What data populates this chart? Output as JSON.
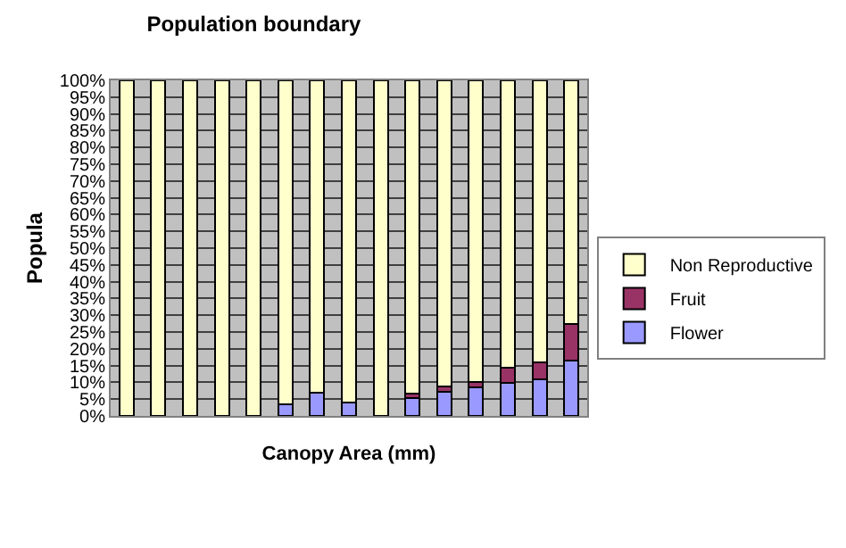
{
  "chart_data": {
    "type": "bar",
    "title": "Population boundary",
    "xlabel": "Canopy Area (mm)",
    "ylabel": "Popula",
    "categories": [
      null,
      null,
      null,
      null,
      null,
      null,
      null,
      null,
      null,
      null,
      null,
      null,
      null,
      null,
      null
    ],
    "stacked": true,
    "grid": "y",
    "legend": "right",
    "ylim": [
      0,
      100
    ],
    "yticks": [
      {
        "value": 0,
        "label": "0%"
      },
      {
        "value": 5,
        "label": "5%"
      },
      {
        "value": 10,
        "label": "10%"
      },
      {
        "value": 15,
        "label": "15%"
      },
      {
        "value": 20,
        "label": "20%"
      },
      {
        "value": 25,
        "label": "25%"
      },
      {
        "value": 30,
        "label": "30%"
      },
      {
        "value": 35,
        "label": "35%"
      },
      {
        "value": 40,
        "label": "40%"
      },
      {
        "value": 45,
        "label": "45%"
      },
      {
        "value": 50,
        "label": "50%"
      },
      {
        "value": 55,
        "label": "55%"
      },
      {
        "value": 60,
        "label": "60%"
      },
      {
        "value": 65,
        "label": "65%"
      },
      {
        "value": 70,
        "label": "70%"
      },
      {
        "value": 75,
        "label": "75%"
      },
      {
        "value": 80,
        "label": "80%"
      },
      {
        "value": 85,
        "label": "85%"
      },
      {
        "value": 90,
        "label": "90%"
      },
      {
        "value": 95,
        "label": "95%"
      },
      {
        "value": 100,
        "label": "100%"
      }
    ],
    "series": [
      {
        "name": "Flower",
        "color": "#9999ff",
        "values": [
          0,
          0,
          0,
          0,
          0,
          3.5,
          7,
          4,
          0,
          5.4,
          7.3,
          8.6,
          9.8,
          10.9,
          16.6
        ]
      },
      {
        "name": "Fruit",
        "color": "#993366",
        "values": [
          0,
          0,
          0,
          0,
          0,
          0,
          0,
          0,
          null,
          1.2,
          1.5,
          1.4,
          4.5,
          5,
          10.7
        ]
      },
      {
        "name": "Non Reproductive",
        "color": "#ffffcc",
        "values": [
          100,
          100,
          100,
          100,
          100,
          96.5,
          93,
          96,
          100,
          93.4,
          91.2,
          90,
          85.7,
          84.1,
          72.7
        ]
      }
    ]
  }
}
